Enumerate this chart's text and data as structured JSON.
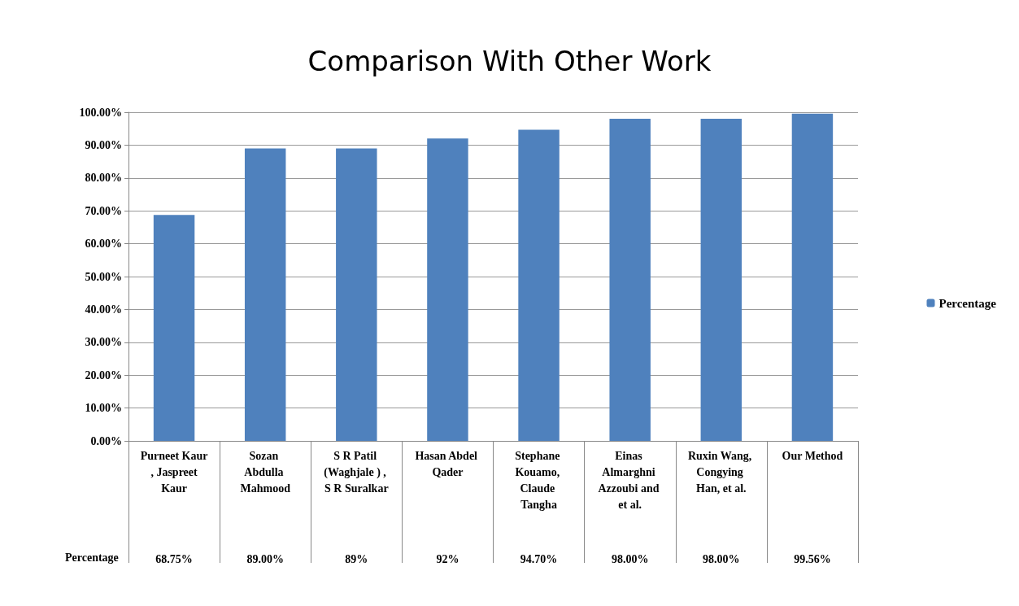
{
  "chart_data": {
    "type": "bar",
    "title": "Comparison With Other Work",
    "categories": [
      "Purneet Kaur , Jaspreet Kaur",
      "Sozan Abdulla Mahmood",
      "S R Patil (Waghjale ) , S R Suralkar",
      "Hasan Abdel Qader",
      "Stephane Kouamo, Claude Tangha",
      "Einas Almarghni Azzoubi and et al.",
      "Ruxin Wang, Congying Han, et al.",
      "Our Method"
    ],
    "series": [
      {
        "name": "Percentage",
        "color": "#4f81bd",
        "values": [
          68.75,
          89,
          89,
          92,
          94.7,
          98,
          98,
          99.56
        ],
        "value_labels": [
          "68.75%",
          "89.00%",
          "89%",
          "92%",
          "94.70%",
          "98.00%",
          "98.00%",
          "99.56%"
        ]
      }
    ],
    "ylim": [
      0,
      100
    ],
    "yticks": [
      {
        "value": 0,
        "label": "0.00%"
      },
      {
        "value": 10,
        "label": "10.00%"
      },
      {
        "value": 20,
        "label": "20.00%"
      },
      {
        "value": 30,
        "label": "30.00%"
      },
      {
        "value": 40,
        "label": "40.00%"
      },
      {
        "value": 50,
        "label": "50.00%"
      },
      {
        "value": 60,
        "label": "60.00%"
      },
      {
        "value": 70,
        "label": "70.00%"
      },
      {
        "value": 80,
        "label": "80.00%"
      },
      {
        "value": 90,
        "label": "90.00%"
      },
      {
        "value": 100,
        "label": "100.00%"
      }
    ],
    "grid": true,
    "legend": "right"
  }
}
